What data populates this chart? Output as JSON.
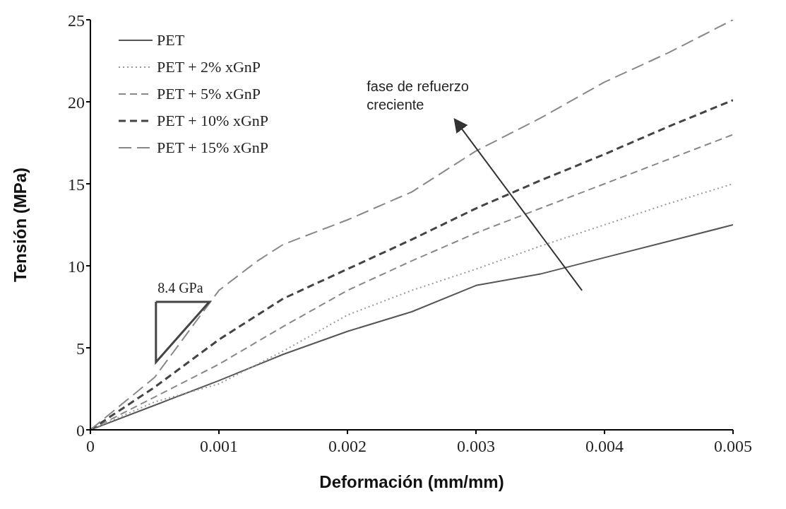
{
  "chart_data": {
    "type": "line",
    "xlabel": "Deformación (mm/mm)",
    "ylabel": "Tensión (MPa)",
    "xlim": [
      0,
      0.005
    ],
    "xticks": [
      0,
      0.001,
      0.002,
      0.003,
      0.004,
      0.005
    ],
    "ylim": [
      0,
      25
    ],
    "yticks": [
      0,
      5,
      10,
      15,
      20,
      25
    ],
    "grid": false,
    "legend": "top left",
    "marker": "none",
    "annotations": [
      "8.4 GPa",
      "fase de refuerzo creciente"
    ],
    "series": [
      {
        "name": "PET",
        "color": "#555555",
        "line_style": "solid",
        "x": [
          0,
          0.0005,
          0.001,
          0.0015,
          0.002,
          0.0025,
          0.003,
          0.0035,
          0.004,
          0.0045,
          0.005
        ],
        "values": [
          0,
          1.5,
          3.0,
          4.6,
          6.0,
          7.2,
          8.8,
          9.5,
          10.5,
          11.5,
          12.5
        ]
      },
      {
        "name": "PET + 2% xGnP",
        "color": "#999999",
        "line_style": "dotted",
        "x": [
          0,
          0.0005,
          0.001,
          0.0015,
          0.002,
          0.0025,
          0.003,
          0.0035,
          0.004,
          0.0045,
          0.005
        ],
        "values": [
          0,
          1.7,
          2.8,
          4.8,
          7.0,
          8.5,
          9.8,
          11.2,
          12.5,
          13.8,
          15
        ]
      },
      {
        "name": "PET + 5% xGnP",
        "color": "#888888",
        "line_style": "dashed",
        "x": [
          0,
          0.0005,
          0.001,
          0.0015,
          0.002,
          0.0025,
          0.003,
          0.0035,
          0.004,
          0.0045,
          0.005
        ],
        "values": [
          0,
          2.0,
          4.0,
          6.3,
          8.5,
          10.3,
          12.0,
          13.5,
          15.0,
          16.5,
          18
        ]
      },
      {
        "name": "PET + 10% xGnP",
        "color": "#444444",
        "line_style": "dashed",
        "x": [
          0,
          0.0005,
          0.001,
          0.0015,
          0.002,
          0.0025,
          0.003,
          0.0035,
          0.004,
          0.0045,
          0.005
        ],
        "values": [
          0,
          2.6,
          5.5,
          8.0,
          9.8,
          11.6,
          13.5,
          15.2,
          16.8,
          18.5,
          20.1
        ]
      },
      {
        "name": "PET + 15% xGnP",
        "color": "#888888",
        "line_style": "dashed",
        "x": [
          0,
          0.0005,
          0.001,
          0.0013,
          0.0015,
          0.002,
          0.0025,
          0.003,
          0.0035,
          0.004,
          0.0045,
          0.005
        ],
        "values": [
          0,
          3.2,
          8.5,
          10.3,
          11.3,
          12.8,
          14.5,
          17.0,
          19.0,
          21.2,
          23.0,
          25
        ]
      }
    ]
  }
}
